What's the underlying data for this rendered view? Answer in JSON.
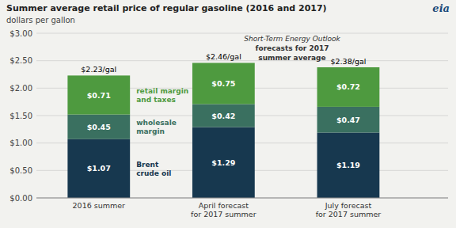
{
  "chart_data": {
    "type": "bar",
    "stacked": true,
    "data_labels": true,
    "grid": true,
    "title": "Summer average retail price of regular gasoline (2016 and 2017)",
    "subtitle": "dollars per gallon",
    "logo": "eia",
    "background_color": "#f2f2ef",
    "categories": [
      "2016 summer",
      "April forecast\nfor 2017 summer",
      "July forecast\nfor 2017 summer"
    ],
    "series": [
      {
        "name": "Brent\ncrude oil",
        "color": "#17384f",
        "values": [
          1.07,
          1.29,
          1.19
        ],
        "value_labels": [
          "$1.07",
          "$1.29",
          "$1.19"
        ]
      },
      {
        "name": "wholesale\nmargin",
        "color": "#3a7060",
        "values": [
          0.45,
          0.42,
          0.47
        ],
        "value_labels": [
          "$0.45",
          "$0.42",
          "$0.47"
        ]
      },
      {
        "name": "retail margin\nand taxes",
        "color": "#4e9a3f",
        "values": [
          0.71,
          0.75,
          0.72
        ],
        "value_labels": [
          "$0.71",
          "$0.75",
          "$0.72"
        ]
      }
    ],
    "totals": {
      "values": [
        2.23,
        2.46,
        2.38
      ],
      "value_labels": [
        "$2.23/gal",
        "$2.46/gal",
        "$2.38/gal"
      ]
    },
    "annotations": [
      "Short-Term Energy Outlook",
      "forecasts for 2017",
      "summer average"
    ],
    "ylim": [
      0,
      3.0
    ],
    "yticks": [
      {
        "value": 0.0,
        "label": "$0.00"
      },
      {
        "value": 0.5,
        "label": "$0.50"
      },
      {
        "value": 1.0,
        "label": "$1.00"
      },
      {
        "value": 1.5,
        "label": "$1.50"
      },
      {
        "value": 2.0,
        "label": "$2.00"
      },
      {
        "value": 2.5,
        "label": "$2.50"
      },
      {
        "value": 3.0,
        "label": "$3.00"
      }
    ]
  }
}
